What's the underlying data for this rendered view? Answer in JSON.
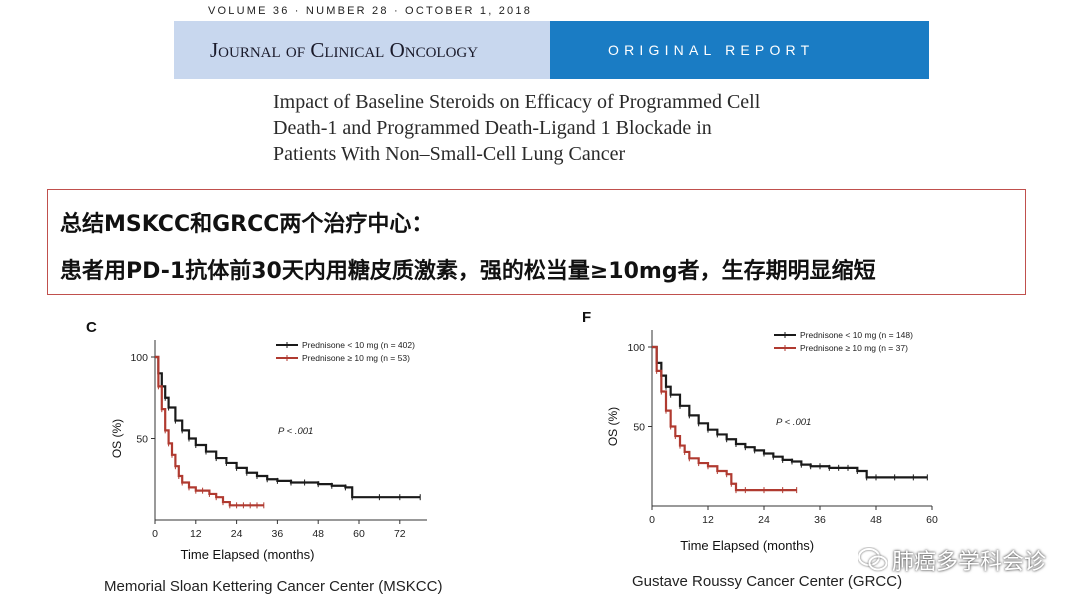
{
  "header": {
    "meta": "VOLUME 36 · NUMBER 28 · OCTOBER 1, 2018",
    "journal": "Journal of Clinical Oncology",
    "report_type": "ORIGINAL REPORT"
  },
  "article": {
    "title_lines": [
      "Impact of Baseline Steroids on Efficacy of Programmed Cell",
      "Death-1 and Programmed Death-Ligand 1 Blockade in",
      "Patients With Non–Small-Cell Lung Cancer"
    ]
  },
  "summary": {
    "line1": "总结MSKCC和GRCC两个治疗中心：",
    "line2": "患者用PD-1抗体前30天内用糖皮质激素，强的松当量≥10mg者，生存期明显缩短"
  },
  "colors": {
    "black_curve": "#1a1a1a",
    "red_curve": "#b03a30",
    "box_border": "#c0504d",
    "journal_bar": "#1a7cc4"
  },
  "chart_data": [
    {
      "type": "line",
      "panel_label": "C",
      "title": "",
      "xlabel": "Time Elapsed (months)",
      "ylabel": "OS (%)",
      "xlim": [
        0,
        80
      ],
      "ylim": [
        0,
        100
      ],
      "xticks": [
        0,
        12,
        24,
        36,
        48,
        60,
        72
      ],
      "yticks": [
        50,
        100
      ],
      "annotation": "P < .001",
      "caption": "Memorial Sloan Kettering Cancer Center (MSKCC)",
      "series": [
        {
          "name": "Prednisone < 10 mg (n = 402)",
          "color": "#1a1a1a",
          "x": [
            0,
            1,
            2,
            3,
            4,
            6,
            8,
            10,
            12,
            15,
            18,
            21,
            24,
            27,
            30,
            33,
            36,
            40,
            44,
            48,
            52,
            56,
            58,
            66,
            72,
            78
          ],
          "y": [
            100,
            90,
            82,
            75,
            69,
            61,
            55,
            50,
            46,
            42,
            38,
            35,
            32,
            29,
            27,
            25,
            24,
            23,
            23,
            22,
            21,
            20,
            14,
            14,
            14,
            14
          ]
        },
        {
          "name": "Prednisone ≥ 10 mg (n = 53)",
          "color": "#b03a30",
          "x": [
            0,
            1,
            2,
            3,
            4,
            5,
            6,
            7,
            8,
            10,
            12,
            14,
            16,
            18,
            20,
            22,
            24,
            26,
            28,
            30,
            32
          ],
          "y": [
            100,
            82,
            68,
            55,
            47,
            40,
            33,
            27,
            23,
            20,
            18,
            18,
            16,
            14,
            11,
            9,
            9,
            9,
            9,
            9,
            9
          ]
        }
      ]
    },
    {
      "type": "line",
      "panel_label": "F",
      "title": "",
      "xlabel": "Time Elapsed (months)",
      "ylabel": "OS (%)",
      "xlim": [
        0,
        60
      ],
      "ylim": [
        0,
        100
      ],
      "xticks": [
        0,
        12,
        24,
        36,
        48,
        60
      ],
      "yticks": [
        50,
        100
      ],
      "annotation": "P < .001",
      "caption": "Gustave Roussy Cancer Center (GRCC)",
      "series": [
        {
          "name": "Prednisone < 10 mg (n = 148)",
          "color": "#1a1a1a",
          "x": [
            0,
            1,
            2,
            3,
            4,
            6,
            8,
            10,
            12,
            14,
            16,
            18,
            20,
            22,
            24,
            26,
            28,
            30,
            32,
            34,
            36,
            38,
            40,
            42,
            44,
            46,
            48,
            52,
            56,
            59
          ],
          "y": [
            100,
            90,
            82,
            75,
            70,
            63,
            57,
            52,
            48,
            45,
            42,
            39,
            37,
            35,
            33,
            31,
            29,
            28,
            26,
            25,
            25,
            24,
            24,
            24,
            22,
            18,
            18,
            18,
            18,
            18
          ]
        },
        {
          "name": "Prednisone ≥ 10 mg (n = 37)",
          "color": "#b03a30",
          "x": [
            0,
            1,
            2,
            3,
            4,
            5,
            6,
            7,
            8,
            10,
            12,
            14,
            16,
            17,
            18,
            20,
            24,
            28,
            31
          ],
          "y": [
            100,
            85,
            72,
            60,
            50,
            44,
            38,
            34,
            30,
            27,
            25,
            22,
            20,
            14,
            10,
            10,
            10,
            10,
            10
          ]
        }
      ]
    }
  ],
  "watermark": {
    "text": "肺癌多学科会诊",
    "icon": "wechat-icon"
  }
}
